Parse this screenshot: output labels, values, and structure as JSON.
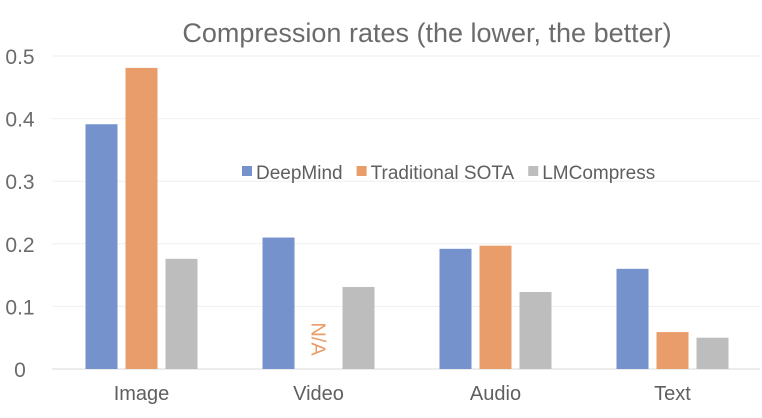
{
  "chart_data": {
    "type": "bar",
    "title": "Compression rates (the lower, the better)",
    "xlabel": "",
    "ylabel": "",
    "categories": [
      "Image",
      "Video",
      "Audio",
      "Text"
    ],
    "series": [
      {
        "name": "DeepMind",
        "color": "#7592cc",
        "values": [
          0.391,
          0.21,
          0.192,
          0.16
        ]
      },
      {
        "name": "Traditional SOTA",
        "color": "#e89d6a",
        "values": [
          0.481,
          null,
          0.197,
          0.059
        ]
      },
      {
        "name": "LMCompress",
        "color": "#bdbdbd",
        "values": [
          0.176,
          0.131,
          0.123,
          0.05
        ]
      }
    ],
    "missing_label": "N/A",
    "ylim": [
      0,
      0.5
    ],
    "yticks": [
      "0",
      "0.1",
      "0.2",
      "0.3",
      "0.4",
      "0.5"
    ],
    "grid": true,
    "legend_position": "center-right"
  }
}
